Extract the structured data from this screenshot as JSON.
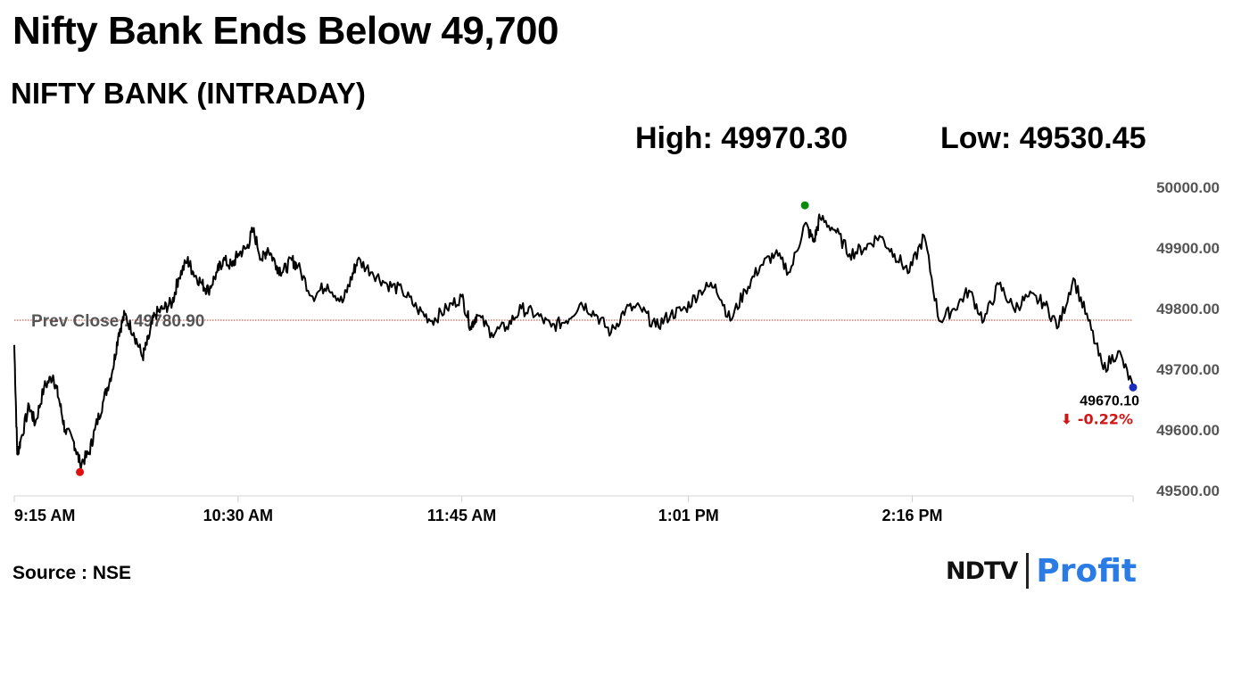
{
  "headline": "Nifty Bank Ends Below 49,700",
  "chart_data": {
    "type": "line",
    "title": "NIFTY BANK (INTRADAY)",
    "high_label": "High: 49970.30",
    "low_label": "Low: 49530.45",
    "prev_close_label": "Prev Close : 49780.90",
    "prev_close": 49780.9,
    "last_value_label": "49670.10",
    "change_label": "⬇ -0.22%",
    "ylim": [
      49500,
      50000
    ],
    "yticks": [
      "50000.00",
      "49900.00",
      "49800.00",
      "49700.00",
      "49600.00",
      "49500.00"
    ],
    "xticks": [
      "9:15 AM",
      "10:30 AM",
      "11:45 AM",
      "1:01 PM",
      "2:16 PM"
    ],
    "series": [
      {
        "x": [
          "9:15",
          "9:16",
          "9:17",
          "9:20",
          "9:22",
          "9:25",
          "9:28",
          "9:30",
          "9:32",
          "9:35",
          "9:37",
          "9:40",
          "9:42",
          "9:45",
          "9:48",
          "9:50",
          "9:52",
          "9:55",
          "9:58",
          "10:00",
          "10:02",
          "10:05",
          "10:08",
          "10:10",
          "10:13",
          "10:15",
          "10:18",
          "10:20",
          "10:23",
          "10:25",
          "10:28",
          "10:30",
          "10:33",
          "10:35",
          "10:38",
          "10:40",
          "10:43",
          "10:45",
          "10:48",
          "10:50",
          "10:55",
          "11:00",
          "11:05",
          "11:08",
          "11:10",
          "11:15",
          "11:20",
          "11:25",
          "11:30",
          "11:35",
          "11:40",
          "11:45",
          "11:48",
          "11:50",
          "11:55",
          "12:00",
          "12:05",
          "12:10",
          "12:15",
          "12:20",
          "12:25",
          "12:30",
          "12:35",
          "12:40",
          "12:45",
          "12:50",
          "12:55",
          "13:00",
          "13:05",
          "13:10",
          "13:15",
          "13:20",
          "13:25",
          "13:30",
          "13:35",
          "13:40",
          "13:43",
          "13:45",
          "13:50",
          "13:55",
          "14:00",
          "14:05",
          "14:10",
          "14:15",
          "14:20",
          "14:25",
          "14:30",
          "14:35",
          "14:40",
          "14:45",
          "14:50",
          "14:55",
          "15:00",
          "15:05",
          "15:10",
          "15:15",
          "15:20",
          "15:25",
          "15:30"
        ],
        "values": [
          49740,
          49560,
          49580,
          49640,
          49610,
          49670,
          49690,
          49650,
          49600,
          49580,
          49545,
          49560,
          49600,
          49650,
          49700,
          49760,
          49790,
          49760,
          49720,
          49750,
          49790,
          49800,
          49810,
          49850,
          49880,
          49860,
          49840,
          49830,
          49860,
          49880,
          49870,
          49890,
          49900,
          49930,
          49880,
          49900,
          49870,
          49860,
          49880,
          49870,
          49820,
          49840,
          49810,
          49850,
          49880,
          49860,
          49840,
          49830,
          49800,
          49780,
          49800,
          49820,
          49770,
          49790,
          49760,
          49770,
          49800,
          49790,
          49770,
          49780,
          49810,
          49790,
          49760,
          49800,
          49800,
          49770,
          49790,
          49800,
          49830,
          49840,
          49780,
          49830,
          49870,
          49890,
          49860,
          49940,
          49910,
          49950,
          49930,
          49890,
          49900,
          49920,
          49890,
          49860,
          49920,
          49780,
          49800,
          49830,
          49780,
          49840,
          49800,
          49820,
          49810,
          49770,
          49850,
          49780,
          49700,
          49730,
          49670
        ]
      }
    ],
    "high_point": {
      "x": "13:40",
      "y": 49970.3
    },
    "low_point": {
      "x": "9:37",
      "y": 49530.45
    },
    "last_point": {
      "x": "15:30",
      "y": 49670.1
    },
    "colors": {
      "line": "#000000",
      "prev_close": "#c0392b",
      "high": "#0a8a0a",
      "low": "#e01010",
      "last": "#1a2dbd",
      "change": "#d21414"
    }
  },
  "source": "Source : NSE",
  "logo": {
    "ndtv": "NDTV",
    "profit": "Profit"
  }
}
